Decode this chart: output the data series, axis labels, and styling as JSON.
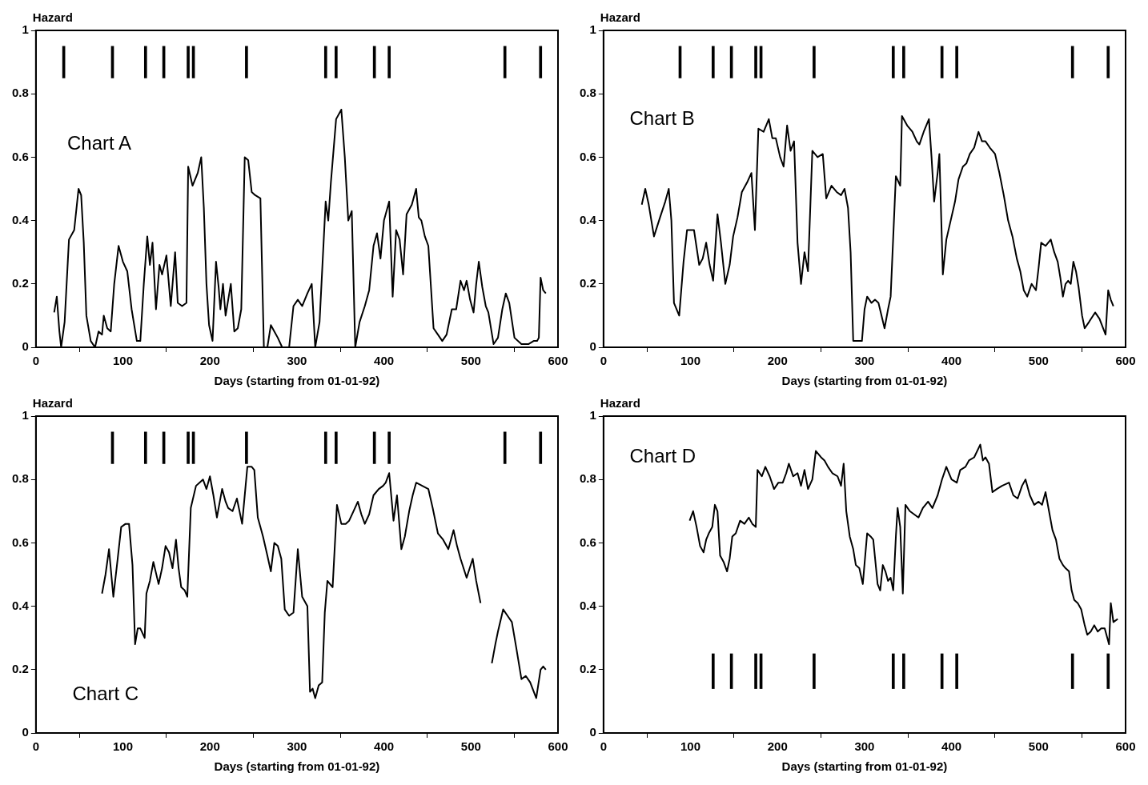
{
  "chart_data": [
    {
      "type": "line",
      "title": "Chart A",
      "xlabel": "Days (starting from 01-01-92)",
      "ylabel": "Hazard",
      "xlim": [
        0,
        600
      ],
      "xticks": [
        0,
        100,
        200,
        300,
        400,
        500,
        600
      ],
      "ylim": [
        0,
        1
      ],
      "yticks": [
        0,
        0.2,
        0.4,
        0.6,
        0.8,
        1
      ],
      "series": [
        {
          "color": "#000000",
          "x": [
            21,
            24,
            27,
            29,
            33,
            38,
            44,
            49,
            52,
            55,
            58,
            63,
            68,
            72,
            76,
            78,
            82,
            86,
            90,
            95,
            100,
            105,
            110,
            116,
            120,
            124,
            128,
            131,
            134,
            138,
            142,
            145,
            150,
            155,
            160,
            163,
            168,
            173,
            175,
            180,
            186,
            190,
            193,
            196,
            199,
            203,
            207,
            210,
            212,
            215,
            218,
            224,
            228,
            232,
            236,
            240,
            244,
            248,
            252,
            258,
            262,
            266,
            270,
            274,
            278,
            283,
            291,
            296,
            301,
            306,
            312,
            317,
            321,
            326,
            333,
            336,
            339,
            345,
            351,
            355,
            359,
            363,
            367,
            372,
            378,
            383,
            388,
            392,
            396,
            400,
            406,
            410,
            414,
            418,
            422,
            426,
            432,
            437,
            440,
            443,
            447,
            451,
            457,
            462,
            467,
            472,
            478,
            483,
            488,
            492,
            495,
            499,
            503,
            506,
            509,
            513,
            517,
            520,
            526,
            531,
            536,
            540,
            544,
            550,
            558,
            566,
            572,
            576,
            578,
            580,
            583,
            586
          ],
          "values": [
            0.11,
            0.16,
            0.05,
            0,
            0.08,
            0.34,
            0.37,
            0.5,
            0.48,
            0.33,
            0.1,
            0.02,
            0,
            0.05,
            0.04,
            0.1,
            0.06,
            0.05,
            0.2,
            0.32,
            0.27,
            0.24,
            0.12,
            0.02,
            0.02,
            0.2,
            0.35,
            0.26,
            0.33,
            0.12,
            0.26,
            0.23,
            0.29,
            0.13,
            0.3,
            0.14,
            0.13,
            0.14,
            0.57,
            0.51,
            0.55,
            0.6,
            0.44,
            0.2,
            0.07,
            0.02,
            0.27,
            0.19,
            0.12,
            0.2,
            0.1,
            0.2,
            0.05,
            0.06,
            0.12,
            0.6,
            0.59,
            0.49,
            0.48,
            0.47,
            0,
            0,
            0.07,
            0.05,
            0.03,
            0,
            0,
            0.13,
            0.15,
            0.13,
            0.17,
            0.2,
            0,
            0.08,
            0.46,
            0.4,
            0.52,
            0.72,
            0.75,
            0.6,
            0.4,
            0.43,
            0,
            0.08,
            0.13,
            0.18,
            0.32,
            0.36,
            0.28,
            0.4,
            0.46,
            0.16,
            0.37,
            0.34,
            0.23,
            0.42,
            0.45,
            0.5,
            0.41,
            0.4,
            0.35,
            0.32,
            0.06,
            0.04,
            0.02,
            0.04,
            0.12,
            0.12,
            0.21,
            0.18,
            0.21,
            0.15,
            0.11,
            0.2,
            0.27,
            0.19,
            0.13,
            0.11,
            0.01,
            0.03,
            0.12,
            0.17,
            0.14,
            0.03,
            0.01,
            0.01,
            0.02,
            0.02,
            0.03,
            0.22,
            0.18,
            0.17
          ]
        },
        {
          "type": "bar",
          "color": "#000000",
          "x": [
            32,
            88,
            126,
            147,
            175,
            181,
            242,
            333,
            345,
            389,
            406,
            539,
            580
          ],
          "base": [
            0.85,
            0.85,
            0.85,
            0.85,
            0.85,
            0.85,
            0.85,
            0.85,
            0.85,
            0.85,
            0.85,
            0.85,
            0.85
          ],
          "values": [
            0.1,
            0.1,
            0.1,
            0.1,
            0.1,
            0.1,
            0.1,
            0.1,
            0.1,
            0.1,
            0.1,
            0.1,
            0.1
          ]
        }
      ]
    },
    {
      "type": "line",
      "title": "Chart B",
      "xlabel": "Days (starting from 01-01-92)",
      "ylabel": "Hazard",
      "xlim": [
        0,
        600
      ],
      "xticks": [
        0,
        100,
        200,
        300,
        400,
        500,
        600
      ],
      "ylim": [
        0,
        1
      ],
      "yticks": [
        0,
        0.2,
        0.4,
        0.6,
        0.8,
        1
      ],
      "series": [
        {
          "color": "#000000",
          "x": [
            44,
            48,
            52,
            58,
            65,
            71,
            75,
            78,
            81,
            87,
            92,
            96,
            104,
            110,
            114,
            118,
            122,
            126,
            131,
            135,
            140,
            145,
            149,
            154,
            159,
            165,
            170,
            174,
            178,
            184,
            190,
            194,
            198,
            203,
            207,
            211,
            215,
            219,
            223,
            227,
            231,
            235,
            240,
            246,
            252,
            256,
            262,
            268,
            273,
            277,
            281,
            284,
            287,
            292,
            297,
            300,
            303,
            308,
            312,
            316,
            323,
            327,
            330,
            333,
            336,
            341,
            343,
            349,
            355,
            360,
            363,
            368,
            374,
            377,
            380,
            384,
            386,
            390,
            394,
            399,
            404,
            408,
            413,
            417,
            421,
            426,
            431,
            435,
            439,
            444,
            450,
            455,
            460,
            465,
            470,
            475,
            479,
            483,
            487,
            492,
            497,
            500,
            503,
            508,
            514,
            518,
            522,
            525,
            528,
            531,
            534,
            537,
            540,
            543,
            546,
            550,
            553,
            558,
            565,
            570,
            577,
            580,
            583,
            586
          ],
          "values": [
            0.45,
            0.5,
            0.45,
            0.35,
            0.41,
            0.46,
            0.5,
            0.4,
            0.14,
            0.1,
            0.27,
            0.37,
            0.37,
            0.26,
            0.28,
            0.33,
            0.26,
            0.21,
            0.42,
            0.33,
            0.2,
            0.26,
            0.35,
            0.41,
            0.49,
            0.52,
            0.55,
            0.37,
            0.69,
            0.68,
            0.72,
            0.66,
            0.66,
            0.6,
            0.57,
            0.7,
            0.62,
            0.65,
            0.33,
            0.2,
            0.3,
            0.24,
            0.62,
            0.6,
            0.61,
            0.47,
            0.51,
            0.49,
            0.48,
            0.5,
            0.44,
            0.3,
            0.02,
            0.02,
            0.02,
            0.12,
            0.16,
            0.14,
            0.15,
            0.14,
            0.06,
            0.12,
            0.16,
            0.35,
            0.54,
            0.51,
            0.73,
            0.7,
            0.68,
            0.65,
            0.64,
            0.68,
            0.72,
            0.6,
            0.46,
            0.55,
            0.61,
            0.23,
            0.34,
            0.4,
            0.46,
            0.53,
            0.57,
            0.58,
            0.61,
            0.63,
            0.68,
            0.65,
            0.65,
            0.63,
            0.61,
            0.55,
            0.48,
            0.4,
            0.35,
            0.28,
            0.24,
            0.18,
            0.16,
            0.2,
            0.18,
            0.25,
            0.33,
            0.32,
            0.34,
            0.3,
            0.27,
            0.22,
            0.16,
            0.2,
            0.21,
            0.2,
            0.27,
            0.24,
            0.19,
            0.1,
            0.06,
            0.08,
            0.11,
            0.09,
            0.04,
            0.18,
            0.15,
            0.13
          ]
        },
        {
          "type": "bar",
          "color": "#000000",
          "x": [
            88,
            126,
            147,
            175,
            181,
            242,
            333,
            345,
            389,
            406,
            539,
            580
          ],
          "base": [
            0.85,
            0.85,
            0.85,
            0.85,
            0.85,
            0.85,
            0.85,
            0.85,
            0.85,
            0.85,
            0.85,
            0.85
          ],
          "values": [
            0.1,
            0.1,
            0.1,
            0.1,
            0.1,
            0.1,
            0.1,
            0.1,
            0.1,
            0.1,
            0.1,
            0.1
          ]
        }
      ]
    },
    {
      "type": "line",
      "title": "Chart C",
      "xlabel": "Days (starting from 01-01-92)",
      "ylabel": "Hazard",
      "xlim": [
        0,
        600
      ],
      "xticks": [
        0,
        100,
        200,
        300,
        400,
        500,
        600
      ],
      "ylim": [
        0,
        1
      ],
      "yticks": [
        0,
        0.2,
        0.4,
        0.6,
        0.8,
        1
      ],
      "series": [
        {
          "color": "#000000",
          "x": [
            76,
            80,
            84,
            89,
            94,
            98,
            103,
            107,
            111,
            114,
            117,
            120,
            125,
            127,
            131,
            135,
            141,
            145,
            149,
            153,
            157,
            161,
            164,
            167,
            171,
            174,
            178,
            184,
            188,
            192,
            196,
            200,
            204,
            208,
            214,
            218,
            221,
            226,
            231,
            237,
            243,
            248,
            251,
            255,
            258,
            261,
            266,
            270,
            274,
            278,
            282,
            286,
            291,
            296,
            301,
            306,
            312,
            315,
            318,
            321,
            325,
            329,
            332,
            335,
            341,
            346,
            351,
            356,
            360,
            365,
            370,
            374,
            378,
            383,
            388,
            394,
            399,
            402,
            406,
            411,
            415,
            420,
            424,
            429,
            433,
            437,
            444,
            451,
            456,
            462,
            468,
            474,
            480,
            484,
            488,
            495,
            502,
            506,
            511,
            518,
            524,
            528,
            531,
            537,
            542,
            547,
            552,
            558,
            563,
            568,
            575,
            580,
            583,
            586
          ],
          "values": [
            0.44,
            0.5,
            0.58,
            0.43,
            0.55,
            0.65,
            0.66,
            0.66,
            0.53,
            0.28,
            0.33,
            0.33,
            0.3,
            0.44,
            0.48,
            0.54,
            0.47,
            0.52,
            0.59,
            0.57,
            0.52,
            0.61,
            0.52,
            0.46,
            0.45,
            0.43,
            0.71,
            0.78,
            0.79,
            0.8,
            0.77,
            0.81,
            0.75,
            0.68,
            0.77,
            0.73,
            0.71,
            0.7,
            0.74,
            0.66,
            0.84,
            0.84,
            0.83,
            0.68,
            0.65,
            0.62,
            0.56,
            0.51,
            0.6,
            0.59,
            0.55,
            0.39,
            0.37,
            0.38,
            0.58,
            0.43,
            0.4,
            0.13,
            0.14,
            0.11,
            0.15,
            0.16,
            0.38,
            0.48,
            0.46,
            0.72,
            0.66,
            0.66,
            0.67,
            0.7,
            0.73,
            0.69,
            0.66,
            0.69,
            0.75,
            0.77,
            0.78,
            0.79,
            0.82,
            0.67,
            0.75,
            0.58,
            0.62,
            0.7,
            0.75,
            0.79,
            0.78,
            0.77,
            0.71,
            0.63,
            0.61,
            0.58,
            0.64,
            0.59,
            0.55,
            0.49,
            0.55,
            0.48,
            0.41,
            null,
            0.22,
            0.28,
            0.32,
            0.39,
            0.37,
            0.35,
            0.27,
            0.17,
            0.18,
            0.16,
            0.11,
            0.2,
            0.21,
            0.2
          ]
        },
        {
          "type": "bar",
          "color": "#000000",
          "x": [
            88,
            126,
            147,
            175,
            181,
            242,
            333,
            345,
            389,
            406,
            539,
            580
          ],
          "base": [
            0.85,
            0.85,
            0.85,
            0.85,
            0.85,
            0.85,
            0.85,
            0.85,
            0.85,
            0.85,
            0.85,
            0.85
          ],
          "values": [
            0.1,
            0.1,
            0.1,
            0.1,
            0.1,
            0.1,
            0.1,
            0.1,
            0.1,
            0.1,
            0.1,
            0.1
          ]
        }
      ]
    },
    {
      "type": "line",
      "title": "Chart D",
      "xlabel": "Days (starting from 01-01-92)",
      "ylabel": "Hazard",
      "xlim": [
        0,
        600
      ],
      "xticks": [
        0,
        100,
        200,
        300,
        400,
        500,
        600
      ],
      "ylim": [
        0,
        1
      ],
      "yticks": [
        0,
        0.2,
        0.4,
        0.6,
        0.8,
        1
      ],
      "series": [
        {
          "color": "#000000",
          "x": [
            99,
            103,
            107,
            111,
            115,
            118,
            121,
            125,
            128,
            131,
            134,
            138,
            142,
            145,
            148,
            152,
            157,
            162,
            167,
            171,
            175,
            177,
            182,
            186,
            191,
            196,
            201,
            206,
            210,
            213,
            218,
            223,
            227,
            231,
            235,
            240,
            244,
            250,
            254,
            258,
            263,
            269,
            273,
            276,
            279,
            283,
            287,
            290,
            294,
            298,
            303,
            307,
            310,
            315,
            318,
            321,
            324,
            327,
            330,
            333,
            336,
            338,
            341,
            344,
            347,
            352,
            357,
            362,
            367,
            373,
            378,
            384,
            389,
            394,
            400,
            406,
            410,
            416,
            420,
            426,
            433,
            436,
            439,
            443,
            447,
            452,
            458,
            466,
            471,
            476,
            481,
            485,
            490,
            495,
            500,
            504,
            508,
            512,
            516,
            520,
            524,
            528,
            531,
            535,
            538,
            541,
            545,
            549,
            553,
            556,
            560,
            564,
            568,
            572,
            576,
            579,
            581,
            583,
            586,
            591
          ],
          "values": [
            0.67,
            0.7,
            0.65,
            0.59,
            0.57,
            0.61,
            0.63,
            0.65,
            0.72,
            0.7,
            0.56,
            0.54,
            0.51,
            0.55,
            0.62,
            0.63,
            0.67,
            0.66,
            0.68,
            0.66,
            0.65,
            0.83,
            0.81,
            0.84,
            0.81,
            0.77,
            0.79,
            0.79,
            0.82,
            0.85,
            0.81,
            0.82,
            0.78,
            0.83,
            0.77,
            0.8,
            0.89,
            0.87,
            0.86,
            0.84,
            0.82,
            0.81,
            0.78,
            0.85,
            0.7,
            0.62,
            0.58,
            0.53,
            0.52,
            0.47,
            0.63,
            0.62,
            0.61,
            0.47,
            0.45,
            0.53,
            0.51,
            0.48,
            0.49,
            0.45,
            0.62,
            0.71,
            0.65,
            0.44,
            0.72,
            0.7,
            0.69,
            0.68,
            0.71,
            0.73,
            0.71,
            0.75,
            0.8,
            0.84,
            0.8,
            0.79,
            0.83,
            0.84,
            0.86,
            0.87,
            0.91,
            0.86,
            0.87,
            0.85,
            0.76,
            0.77,
            0.78,
            0.79,
            0.75,
            0.74,
            0.78,
            0.8,
            0.75,
            0.72,
            0.73,
            0.72,
            0.76,
            0.7,
            0.64,
            0.61,
            0.55,
            0.53,
            0.52,
            0.51,
            0.45,
            0.42,
            0.41,
            0.39,
            0.34,
            0.31,
            0.32,
            0.34,
            0.32,
            0.33,
            0.33,
            0.3,
            0.28,
            0.41,
            0.35,
            0.36
          ]
        },
        {
          "type": "bar",
          "color": "#000000",
          "x": [
            126,
            147,
            175,
            181,
            242,
            333,
            345,
            389,
            406,
            539,
            580
          ],
          "base": [
            0.14,
            0.14,
            0.14,
            0.14,
            0.14,
            0.14,
            0.14,
            0.14,
            0.14,
            0.14,
            0.14
          ],
          "values": [
            0.11,
            0.11,
            0.11,
            0.11,
            0.11,
            0.11,
            0.11,
            0.11,
            0.11,
            0.11,
            0.11
          ]
        }
      ]
    }
  ]
}
